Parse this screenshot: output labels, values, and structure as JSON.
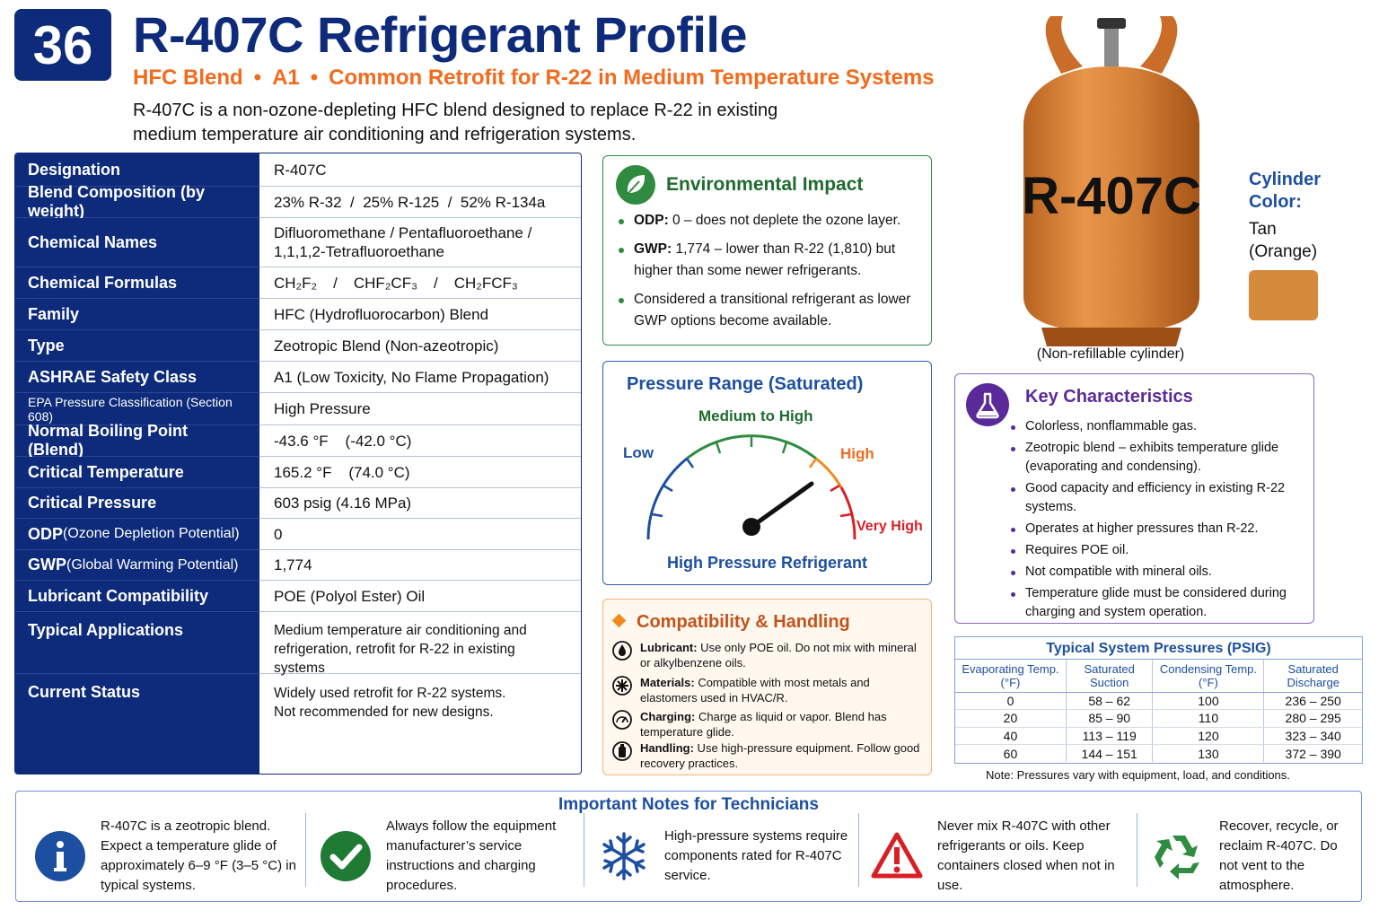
{
  "header": {
    "badge": "36",
    "title": "R-407C Refrigerant Profile",
    "subtitle_parts": [
      "HFC Blend",
      "A1",
      "Common Retrofit for R-22 in Medium Temperature Systems"
    ],
    "intro": "R-407C is a non-ozone-depleting HFC blend designed to replace R-22 in existing medium temperature air conditioning and refrigeration systems."
  },
  "properties": [
    {
      "label": "Designation",
      "value": "R-407C"
    },
    {
      "label": "Blend Composition (by weight)",
      "value": "23% R-32  /  25% R-125  /  52% R-134a"
    },
    {
      "label": "Chemical Names",
      "value": "Difluoromethane / Pentafluoroethane / 1,1,1,2-Tetrafluoroethane"
    },
    {
      "label": "Chemical Formulas",
      "formulas": [
        "CH₂F₂",
        "CHF₂CF₃",
        "CH₂FCF₃"
      ]
    },
    {
      "label": "Family",
      "value": "HFC (Hydrofluorocarbon) Blend"
    },
    {
      "label": "Type",
      "value": "Zeotropic Blend (Non-azeotropic)"
    },
    {
      "label": "ASHRAE Safety Class",
      "value": "A1 (Low Toxicity, No Flame Propagation)"
    },
    {
      "label": "EPA Pressure Classification (Section 608)",
      "value": "High Pressure"
    },
    {
      "label": "Normal Boiling Point (Blend)",
      "value": "-43.6 °F    (-42.0 °C)"
    },
    {
      "label": "Critical Temperature",
      "value": "165.2 °F    (74.0 °C)"
    },
    {
      "label": "Critical Pressure",
      "value": "603 psig (4.16 MPa)"
    },
    {
      "label_main": "ODP",
      "label_sub": " (Ozone Depletion Potential)",
      "value": "0"
    },
    {
      "label_main": "GWP",
      "label_sub": " (Global Warming Potential)",
      "value": "1,774"
    },
    {
      "label": "Lubricant Compatibility",
      "value": "POE (Polyol Ester) Oil"
    },
    {
      "label": "Typical Applications",
      "value": "Medium temperature air conditioning and refrigeration, retrofit for R-22 in existing systems"
    },
    {
      "label": "Current Status",
      "value_lines": [
        "Widely used retrofit for R-22 systems.",
        "Not recommended for new designs."
      ]
    }
  ],
  "environmental": {
    "title": "Environmental Impact",
    "items": [
      {
        "bold": "ODP:",
        "text": " 0 – does not deplete the ozone layer."
      },
      {
        "bold": "GWP:",
        "text": " 1,774 – lower than R-22 (1,810) but higher than some newer refrigerants."
      },
      {
        "bold": "",
        "text": "Considered a transitional refrigerant as lower GWP options become available."
      }
    ],
    "icon": "leaf-icon",
    "color": "#2e8b3f"
  },
  "pressure_range": {
    "title": "Pressure Range (Saturated)",
    "labels": {
      "low": "Low",
      "medium_high": "Medium to High",
      "high": "High",
      "very_high": "Very High"
    },
    "footer": "High Pressure Refrigerant",
    "needle_position": "medium-high"
  },
  "compatibility": {
    "title": "Compatibility & Handling",
    "items": [
      {
        "icon": "oil-drop-icon",
        "bold": "Lubricant:",
        "text": " Use only POE oil. Do not mix with mineral or alkylbenzene oils."
      },
      {
        "icon": "materials-icon",
        "bold": "Materials:",
        "text": " Compatible with most metals and elastomers used in HVAC/R."
      },
      {
        "icon": "gauge-icon",
        "bold": "Charging:",
        "text": " Charge as liquid or vapor. Blend has temperature glide."
      },
      {
        "icon": "cylinder-icon",
        "bold": "Handling:",
        "text": " Use high-pressure equipment. Follow good recovery practices."
      }
    ]
  },
  "cylinder": {
    "label": "R-407C",
    "caption": "(Non-refillable cylinder)",
    "color_label": "Cylinder Color:",
    "color_value": "Tan (Orange)",
    "swatch": "#d68a3c"
  },
  "key_characteristics": {
    "title": "Key Characteristics",
    "items": [
      "Colorless, nonflammable gas.",
      "Zeotropic blend – exhibits temperature glide (evaporating and condensing).",
      "Good capacity and efficiency in existing R-22 systems.",
      "Operates at higher pressures than R-22.",
      "Requires POE oil.",
      "Not compatible with mineral oils.",
      "Temperature glide must be considered during charging and system operation."
    ]
  },
  "typical_pressures": {
    "title": "Typical System Pressures (PSIG)",
    "headers": [
      "Evaporating Temp. (°F)",
      "Saturated Suction",
      "Condensing Temp. (°F)",
      "Saturated Discharge"
    ],
    "rows": [
      [
        "0",
        "58 – 62",
        "100",
        "236 – 250"
      ],
      [
        "20",
        "85 – 90",
        "110",
        "280 – 295"
      ],
      [
        "40",
        "113 – 119",
        "120",
        "323 – 340"
      ],
      [
        "60",
        "144 – 151",
        "130",
        "372 – 390"
      ]
    ],
    "note": "Note: Pressures vary with equipment, load, and conditions."
  },
  "notes": {
    "title": "Important Notes for Technicians",
    "items": [
      {
        "icon": "info-icon",
        "text": "R-407C is a zeotropic blend. Expect a temperature glide of approximately 6–9 °F (3–5 °C) in typical systems."
      },
      {
        "icon": "checkmark-icon",
        "text": "Always follow the equipment manufacturer’s service instructions and charging procedures."
      },
      {
        "icon": "snowflake-icon",
        "text": "High-pressure systems require components rated for R-407C service."
      },
      {
        "icon": "warning-icon",
        "text": "Never mix R-407C with other refrigerants or oils. Keep containers closed when not in use."
      },
      {
        "icon": "recycle-icon",
        "text": "Recover, recycle, or reclaim R-407C. Do not vent to the atmosphere."
      }
    ]
  }
}
